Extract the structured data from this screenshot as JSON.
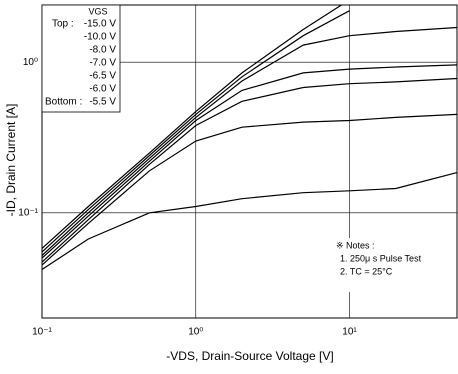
{
  "chart_data": {
    "type": "line",
    "x_label": "-VDS, Drain-Source Voltage [V]",
    "y_label": "-ID, Drain Current [A]",
    "log_x": true,
    "log_y": true,
    "grid": true,
    "xlim": [
      0.1,
      50
    ],
    "ylim": [
      0.02,
      2.4
    ],
    "xticks": [
      {
        "value": 0.1,
        "label": "10⁻¹"
      },
      {
        "value": 1,
        "label": "10⁰"
      },
      {
        "value": 10,
        "label": "10¹"
      }
    ],
    "yticks": [
      {
        "value": 0.1,
        "label": "10⁻¹"
      },
      {
        "value": 1,
        "label": "10⁰"
      }
    ],
    "x": [
      0.1,
      0.2,
      0.5,
      1,
      2,
      5,
      10,
      20,
      50
    ],
    "legend_title": "VGS",
    "legend_top": "Top :",
    "legend_bottom": "Bottom :",
    "series": [
      {
        "name": "-15.0 V",
        "color": "#000000",
        "values": [
          0.058,
          0.11,
          0.25,
          0.47,
          0.85,
          1.65,
          2.6,
          null,
          null
        ]
      },
      {
        "name": "-10.0 V",
        "color": "#000000",
        "values": [
          0.055,
          0.105,
          0.24,
          0.45,
          0.8,
          1.5,
          2.2,
          null,
          null
        ]
      },
      {
        "name": "-8.0 V",
        "color": "#000000",
        "values": [
          0.052,
          0.1,
          0.23,
          0.43,
          0.75,
          1.3,
          1.5,
          1.6,
          1.7
        ]
      },
      {
        "name": "-7.0 V",
        "color": "#000000",
        "values": [
          0.05,
          0.095,
          0.22,
          0.41,
          0.65,
          0.85,
          0.9,
          0.93,
          0.96
        ]
      },
      {
        "name": "-6.5 V",
        "color": "#000000",
        "values": [
          0.047,
          0.09,
          0.21,
          0.38,
          0.55,
          0.68,
          0.72,
          0.74,
          0.78
        ]
      },
      {
        "name": "-6.0 V",
        "color": "#000000",
        "values": [
          0.045,
          0.085,
          0.19,
          0.3,
          0.37,
          0.4,
          0.41,
          0.43,
          0.45
        ]
      },
      {
        "name": "-5.5 V",
        "color": "#000000",
        "values": [
          0.042,
          0.067,
          0.1,
          0.11,
          0.124,
          0.136,
          0.14,
          0.145,
          0.185
        ]
      }
    ],
    "notes": [
      "※ Notes :",
      "1. 250μ s Pulse Test",
      "2. TC = 25°C"
    ]
  }
}
